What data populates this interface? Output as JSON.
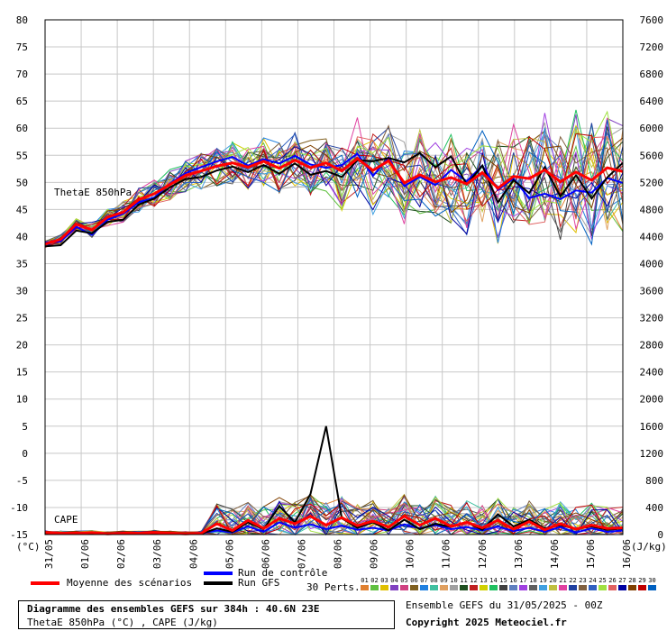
{
  "chart_data": {
    "type": "line",
    "x_labels": [
      "31/05",
      "01/06",
      "02/06",
      "03/06",
      "04/06",
      "05/06",
      "06/06",
      "07/06",
      "08/06",
      "09/06",
      "10/06",
      "11/06",
      "12/06",
      "13/06",
      "14/06",
      "15/06",
      "16/06"
    ],
    "left_axis": {
      "ticks": [
        80,
        75,
        70,
        65,
        60,
        55,
        50,
        45,
        40,
        35,
        30,
        25,
        20,
        15,
        10,
        5,
        0,
        -5,
        -10,
        -15
      ],
      "ylim": [
        -15,
        80
      ],
      "unit_label": "(°C)"
    },
    "right_axis": {
      "ticks": [
        7600,
        7200,
        6800,
        6400,
        6000,
        5600,
        5200,
        4800,
        4400,
        4000,
        3600,
        3200,
        2800,
        2400,
        2000,
        1600,
        1200,
        800,
        400,
        0
      ],
      "ylim": [
        0,
        7600
      ],
      "unit_label": "(J/kg)"
    },
    "theta_label": "ThetaE 850hPa",
    "cape_label": "CAPE",
    "series": [
      {
        "name": "Moyenne des scénarios",
        "color": "#ff0000",
        "theta": [
          38.6,
          39.5,
          42.3,
          41.2,
          43.6,
          44.5,
          46.8,
          47.9,
          49.6,
          51.3,
          52.1,
          53.0,
          53.6,
          52.8,
          53.9,
          52.6,
          54.1,
          52.7,
          53.6,
          52.1,
          54.4,
          52.2,
          54.0,
          49.9,
          51.4,
          50.1,
          50.9,
          49.7,
          51.8,
          48.9,
          51.1,
          50.7,
          52.3,
          50.1,
          51.9,
          50.4,
          52.7,
          52.0
        ],
        "cape": [
          30,
          20,
          20,
          30,
          10,
          20,
          20,
          30,
          20,
          10,
          20,
          160,
          60,
          210,
          90,
          240,
          160,
          270,
          140,
          250,
          130,
          200,
          110,
          270,
          140,
          240,
          120,
          180,
          100,
          210,
          80,
          190,
          70,
          160,
          80,
          140,
          90,
          100
        ]
      },
      {
        "name": "Run de contrôle",
        "color": "#0000ff",
        "theta": [
          38.9,
          39.1,
          41.8,
          40.3,
          43.1,
          44.2,
          46.3,
          47.2,
          49.8,
          51.7,
          52.8,
          53.9,
          54.7,
          53.1,
          54.3,
          53.5,
          54.9,
          53.3,
          52.7,
          53.2,
          55.3,
          51.2,
          54.6,
          49.3,
          51.0,
          49.5,
          52.3,
          50.2,
          53.1,
          48.6,
          50.7,
          47.1,
          47.9,
          46.9,
          48.5,
          48.1,
          50.8,
          49.9
        ],
        "cape": [
          20,
          10,
          10,
          10,
          10,
          10,
          10,
          20,
          10,
          10,
          20,
          60,
          30,
          120,
          40,
          180,
          100,
          150,
          80,
          130,
          70,
          100,
          60,
          150,
          90,
          140,
          80,
          110,
          60,
          120,
          50,
          100,
          40,
          110,
          30,
          90,
          40,
          60
        ]
      },
      {
        "name": "Run GFS",
        "color": "#000000",
        "theta": [
          38.2,
          38.4,
          41.1,
          40.6,
          42.7,
          43.1,
          45.9,
          47.0,
          49.1,
          50.6,
          51.0,
          52.2,
          52.9,
          51.9,
          53.2,
          51.6,
          53.5,
          51.4,
          52.1,
          51.0,
          54.1,
          53.9,
          54.5,
          53.7,
          55.4,
          52.8,
          54.8,
          49.6,
          53.1,
          46.3,
          50.4,
          48.0,
          52.8,
          47.4,
          51.3,
          47.0,
          50.9,
          53.6
        ],
        "cape": [
          20,
          10,
          10,
          10,
          10,
          10,
          10,
          10,
          10,
          10,
          10,
          90,
          40,
          180,
          80,
          420,
          180,
          600,
          1600,
          240,
          100,
          180,
          60,
          220,
          80,
          160,
          110,
          180,
          70,
          300,
          120,
          220,
          90,
          140,
          80,
          120,
          70,
          90
        ]
      }
    ],
    "members_count": 30,
    "members_label": "30 Perts.",
    "member_numbers": [
      "01",
      "02",
      "03",
      "04",
      "05",
      "06",
      "07",
      "08",
      "09",
      "10",
      "11",
      "12",
      "13",
      "14",
      "15",
      "16",
      "17",
      "18",
      "19",
      "20",
      "21",
      "22",
      "23",
      "24",
      "25",
      "26",
      "27",
      "28",
      "29",
      "30"
    ],
    "member_colors": [
      "#e08030",
      "#60c040",
      "#e0c000",
      "#8040c0",
      "#d04080",
      "#806020",
      "#2080e0",
      "#40c0a0",
      "#e0a060",
      "#a0a0a0",
      "#205020",
      "#c02020",
      "#d0d000",
      "#20c060",
      "#404040",
      "#6080c0",
      "#a040e0",
      "#606060",
      "#40a0e0",
      "#c0c040",
      "#e040a0",
      "#2040a0",
      "#806040",
      "#3060c0",
      "#a0e040",
      "#e06060",
      "#0000a0",
      "#804000",
      "#c00000",
      "#0060c0"
    ]
  },
  "legend": {
    "mean_label": "Moyenne des scénarios",
    "control_label": "Run de contrôle",
    "gfs_label": "Run GFS"
  },
  "footer": {
    "title": "Diagramme des ensembles GEFS sur 384h : 40.6N 23E",
    "subtitle": "ThetaE 850hPa (°C) , CAPE (J/kg)",
    "ensemble": "Ensemble GEFS du 31/05/2025 - 00Z",
    "copyright": "Copyright 2025 Meteociel.fr"
  },
  "colors": {
    "mean": "#ff0000",
    "control": "#0000ff",
    "gfs": "#000000",
    "grid": "#c8c8c8"
  }
}
